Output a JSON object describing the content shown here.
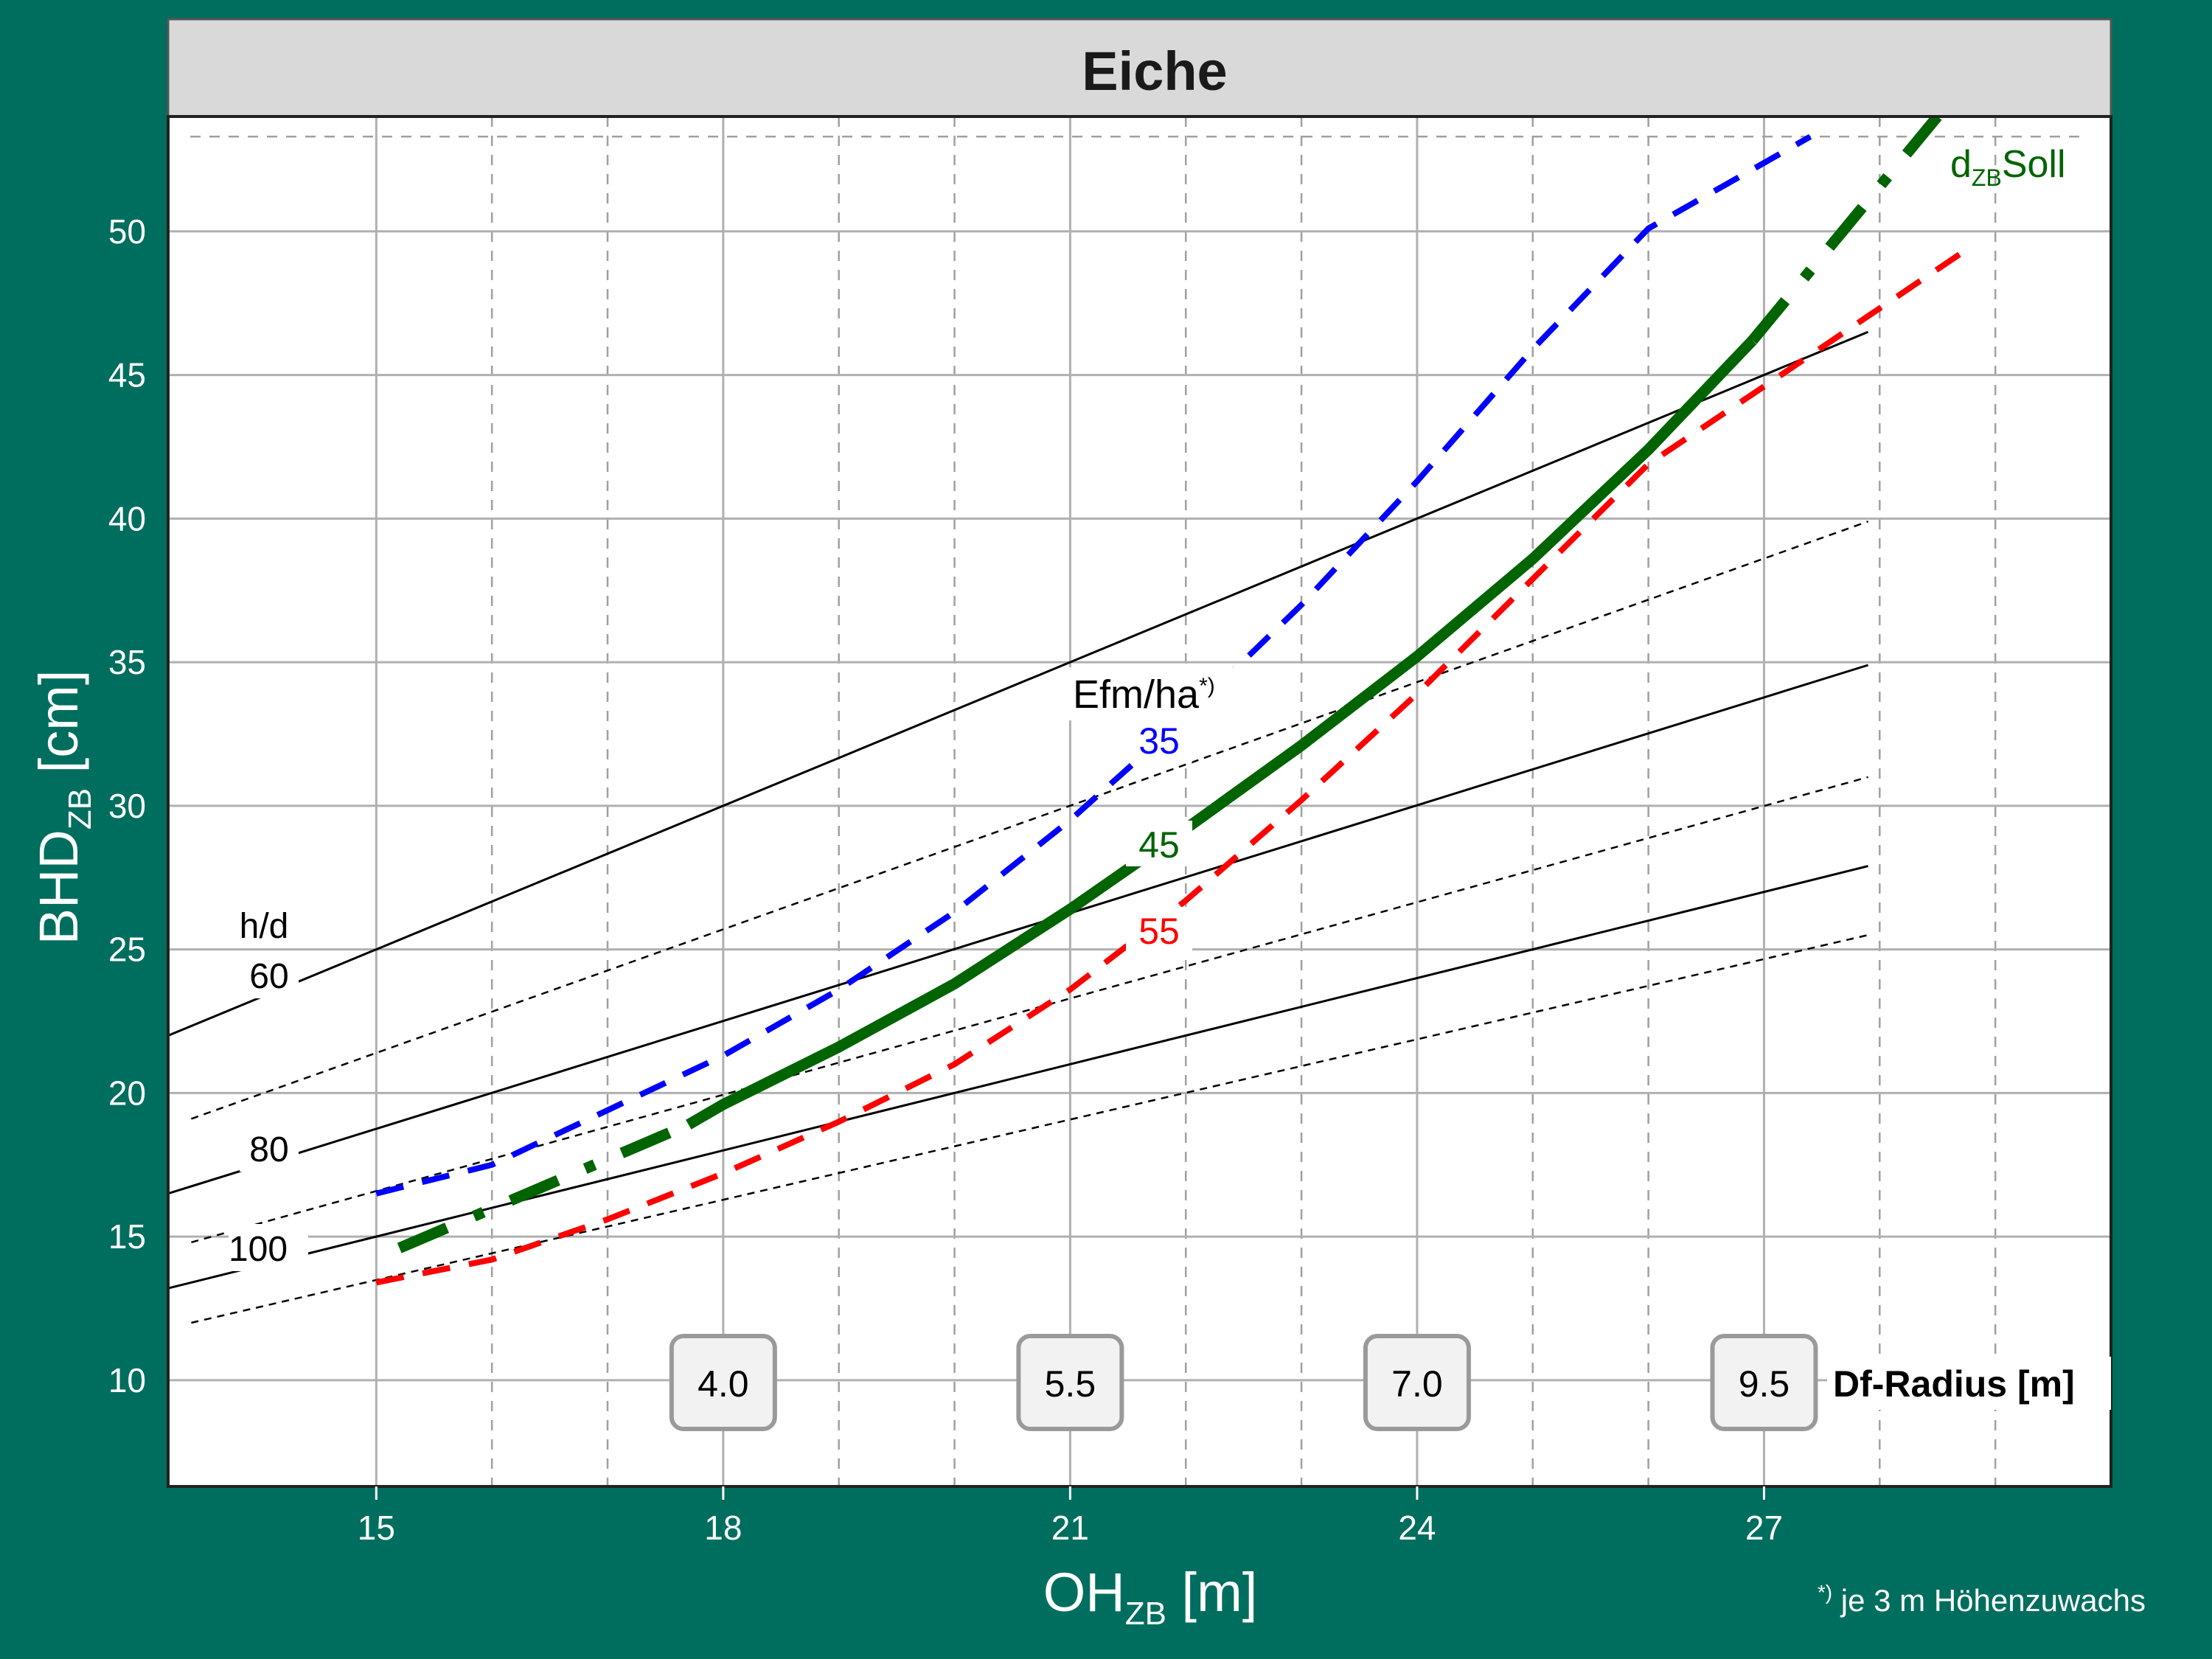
{
  "chart_data": {
    "type": "line",
    "title": "Eiche",
    "xlabel": {
      "main": "OH",
      "sub": "ZB",
      "unit": "[m]"
    },
    "ylabel": {
      "main": "BHD",
      "sub": "ZB",
      "unit": "[cm]"
    },
    "xlim": [
      13.2,
      30.0
    ],
    "ylim": [
      6.3,
      54.0
    ],
    "x_ticks": [
      15,
      18,
      21,
      24,
      27
    ],
    "y_ticks": [
      10,
      15,
      20,
      25,
      30,
      35,
      40,
      45,
      50
    ],
    "grid": true,
    "hd_lines": [
      {
        "label": "60",
        "points": [
          [
            13.2,
            22.0
          ],
          [
            27.9,
            46.5
          ]
        ]
      },
      {
        "label": "80",
        "points": [
          [
            13.2,
            16.5
          ],
          [
            27.9,
            34.9
          ]
        ]
      },
      {
        "label": "100",
        "points": [
          [
            13.2,
            13.2
          ],
          [
            27.9,
            27.9
          ]
        ]
      }
    ],
    "hd_dashed_lines": [
      {
        "points": [
          [
            13.4,
            19.1
          ],
          [
            27.9,
            39.9
          ]
        ]
      },
      {
        "points": [
          [
            13.4,
            14.8
          ],
          [
            27.9,
            31.0
          ]
        ]
      },
      {
        "points": [
          [
            13.4,
            12.0
          ],
          [
            27.9,
            25.5
          ]
        ]
      }
    ],
    "hd_title": "h/d",
    "efm_title": "Efm/ha",
    "efm_title_sup": "*)",
    "series": [
      {
        "name": "35",
        "color": "#0000ff",
        "style": "dashed",
        "points": [
          [
            15,
            16.5
          ],
          [
            16,
            17.5
          ],
          [
            17,
            19.4
          ],
          [
            18,
            21.3
          ],
          [
            19,
            23.6
          ],
          [
            20,
            26.3
          ],
          [
            21,
            29.5
          ],
          [
            22,
            33.1
          ],
          [
            23,
            37.0
          ],
          [
            24,
            41.3
          ],
          [
            25,
            45.9
          ],
          [
            26,
            50.1
          ],
          [
            27.4,
            53.3
          ]
        ]
      },
      {
        "name": "45",
        "color": "#006400",
        "style": "solid",
        "points": [
          [
            17.7,
            18.9
          ],
          [
            18,
            19.6
          ],
          [
            19,
            21.6
          ],
          [
            20,
            23.8
          ],
          [
            21,
            26.4
          ],
          [
            22,
            29.2
          ],
          [
            23,
            32.1
          ],
          [
            24,
            35.2
          ],
          [
            25,
            38.6
          ],
          [
            26,
            42.4
          ],
          [
            26.9,
            46.2
          ]
        ]
      },
      {
        "name": "55",
        "color": "#ff0000",
        "style": "dashed",
        "points": [
          [
            15,
            13.4
          ],
          [
            16,
            14.2
          ],
          [
            17,
            15.6
          ],
          [
            18,
            17.2
          ],
          [
            19,
            19.0
          ],
          [
            20,
            21.0
          ],
          [
            21,
            23.6
          ],
          [
            22,
            26.7
          ],
          [
            23,
            30.2
          ],
          [
            24,
            33.9
          ],
          [
            25,
            37.9
          ],
          [
            26,
            41.9
          ],
          [
            27,
            44.6
          ],
          [
            28.8,
            49.5
          ]
        ]
      }
    ],
    "dzb_soll": {
      "label_main": "d",
      "label_sub": "ZB",
      "label_suffix": "Soll",
      "color": "#006400",
      "lower_points": [
        [
          15.2,
          14.6
        ],
        [
          17.7,
          18.9
        ]
      ],
      "upper_points": [
        [
          26.9,
          46.2
        ],
        [
          28.5,
          54.0
        ]
      ]
    },
    "df_radius": {
      "label": "Df-Radius [m]",
      "values": [
        {
          "x": 18,
          "value": "4.0"
        },
        {
          "x": 21,
          "value": "5.5"
        },
        {
          "x": 24,
          "value": "7.0"
        },
        {
          "x": 27,
          "value": "9.5"
        }
      ]
    },
    "footnote": {
      "sup": "*)",
      "text": " je 3 m Höhenzuwachs"
    }
  }
}
